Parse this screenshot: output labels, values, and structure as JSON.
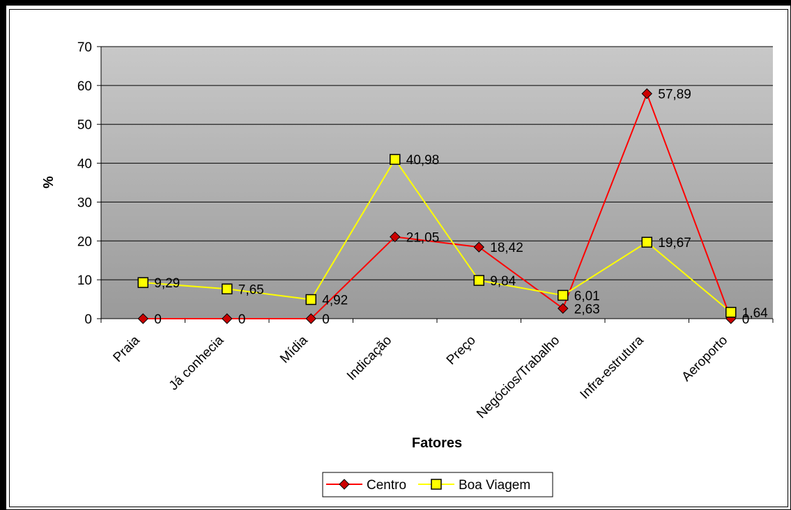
{
  "chart_data": {
    "type": "line",
    "xlabel": "Fatores",
    "ylabel": "%",
    "ylim": [
      0,
      70
    ],
    "yticks": [
      0,
      10,
      20,
      30,
      40,
      50,
      60,
      70
    ],
    "grid": "horizontal",
    "legend_position": "bottom",
    "categories": [
      "Praia",
      "Já conhecia",
      "Mídia",
      "Indicação",
      "Preço",
      "Negócios/Trabalho",
      "Infra-estrutura",
      "Aeroporto"
    ],
    "series": [
      {
        "name": "Centro",
        "color": "#ff0000",
        "marker_fill": "#cc0000",
        "marker": "diamond",
        "values": [
          0,
          0,
          0,
          21.05,
          18.42,
          2.63,
          57.89,
          0
        ],
        "labels": [
          "0",
          "0",
          "0",
          "21,05",
          "18,42",
          "2,63",
          "57,89",
          "0"
        ]
      },
      {
        "name": "Boa Viagem",
        "color": "#ffff00",
        "marker_fill": "#ffff00",
        "marker": "square",
        "values": [
          9.29,
          7.65,
          4.92,
          40.98,
          9.84,
          6.01,
          19.67,
          1.64
        ],
        "labels": [
          "9,29",
          "7,65",
          "4,92",
          "40,98",
          "9,84",
          "6,01",
          "19,67",
          "1,64"
        ]
      }
    ]
  }
}
